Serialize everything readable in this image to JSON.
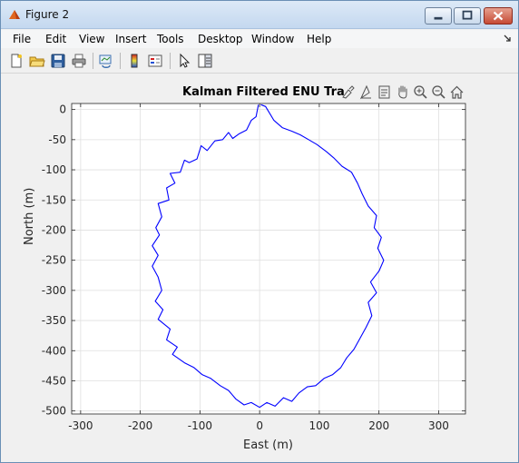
{
  "window": {
    "title": "Figure 2"
  },
  "menu": [
    "File",
    "Edit",
    "View",
    "Insert",
    "Tools",
    "Desktop",
    "Window",
    "Help"
  ],
  "toolbar": {
    "icons": [
      "new-figure-icon",
      "open-file-icon",
      "save-icon",
      "print-icon",
      "link-plot-icon",
      "colorbar-icon",
      "legend-icon",
      "pointer-icon",
      "plot-tools-icon"
    ]
  },
  "axes_toolbar": {
    "icons": [
      "brush-icon",
      "data-tips-icon",
      "export-icon",
      "pan-icon",
      "zoom-in-icon",
      "zoom-out-icon",
      "home-icon"
    ]
  },
  "colors": {
    "trajectory": "#0000ff",
    "grid": "#dfdfdf",
    "axis": "#262626"
  },
  "chart_data": {
    "type": "line",
    "title": "Kalman Filtered ENU Tra",
    "xlabel": "East (m)",
    "ylabel": "North (m)",
    "xlim": [
      -315,
      345
    ],
    "ylim": [
      -505,
      10
    ],
    "xticks": [
      -300,
      -200,
      -100,
      0,
      100,
      200,
      300
    ],
    "yticks": [
      0,
      -50,
      -100,
      -150,
      -200,
      -250,
      -300,
      -350,
      -400,
      -450,
      -500
    ],
    "grid": true,
    "series": [
      {
        "points": [
          [
            -2,
            8
          ],
          [
            -6,
            -12
          ],
          [
            -14,
            -18
          ],
          [
            -22,
            -34
          ],
          [
            -34,
            -40
          ],
          [
            -45,
            -48
          ],
          [
            -52,
            -38
          ],
          [
            -62,
            -50
          ],
          [
            -75,
            -52
          ],
          [
            -88,
            -68
          ],
          [
            -98,
            -60
          ],
          [
            -105,
            -82
          ],
          [
            -118,
            -88
          ],
          [
            -126,
            -84
          ],
          [
            -133,
            -104
          ],
          [
            -150,
            -106
          ],
          [
            -142,
            -122
          ],
          [
            -156,
            -130
          ],
          [
            -152,
            -150
          ],
          [
            -170,
            -156
          ],
          [
            -164,
            -178
          ],
          [
            -174,
            -196
          ],
          [
            -168,
            -208
          ],
          [
            -180,
            -226
          ],
          [
            -170,
            -242
          ],
          [
            -180,
            -260
          ],
          [
            -170,
            -278
          ],
          [
            -164,
            -300
          ],
          [
            -175,
            -318
          ],
          [
            -162,
            -332
          ],
          [
            -170,
            -348
          ],
          [
            -150,
            -364
          ],
          [
            -156,
            -382
          ],
          [
            -138,
            -394
          ],
          [
            -146,
            -406
          ],
          [
            -126,
            -420
          ],
          [
            -110,
            -428
          ],
          [
            -96,
            -440
          ],
          [
            -82,
            -446
          ],
          [
            -66,
            -458
          ],
          [
            -52,
            -466
          ],
          [
            -40,
            -480
          ],
          [
            -26,
            -490
          ],
          [
            -14,
            -486
          ],
          [
            0,
            -494
          ],
          [
            12,
            -486
          ],
          [
            26,
            -492
          ],
          [
            40,
            -478
          ],
          [
            54,
            -484
          ],
          [
            66,
            -470
          ],
          [
            80,
            -460
          ],
          [
            94,
            -458
          ],
          [
            108,
            -446
          ],
          [
            122,
            -440
          ],
          [
            136,
            -428
          ],
          [
            146,
            -412
          ],
          [
            158,
            -398
          ],
          [
            168,
            -380
          ],
          [
            178,
            -362
          ],
          [
            188,
            -342
          ],
          [
            182,
            -320
          ],
          [
            196,
            -304
          ],
          [
            186,
            -286
          ],
          [
            200,
            -268
          ],
          [
            208,
            -250
          ],
          [
            198,
            -230
          ],
          [
            204,
            -212
          ],
          [
            192,
            -196
          ],
          [
            196,
            -176
          ],
          [
            182,
            -160
          ],
          [
            172,
            -140
          ],
          [
            164,
            -122
          ],
          [
            154,
            -104
          ],
          [
            138,
            -94
          ],
          [
            124,
            -80
          ],
          [
            112,
            -70
          ],
          [
            96,
            -58
          ],
          [
            82,
            -50
          ],
          [
            68,
            -42
          ],
          [
            54,
            -36
          ],
          [
            38,
            -30
          ],
          [
            24,
            -18
          ],
          [
            10,
            5
          ],
          [
            2,
            8
          ]
        ]
      }
    ]
  }
}
